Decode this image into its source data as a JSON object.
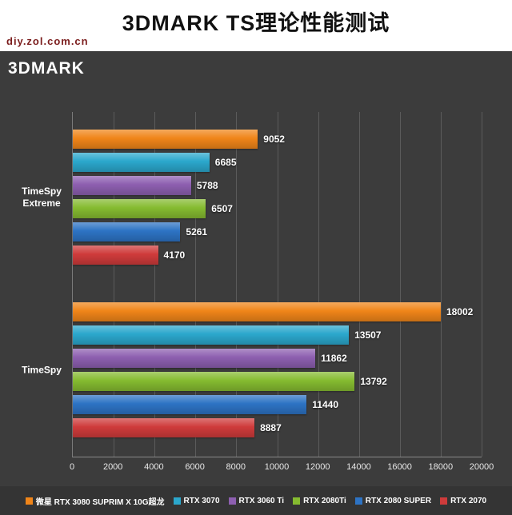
{
  "header": {
    "title": "3DMARK TS理论性能测试",
    "watermark": "diy.zol.com.cn"
  },
  "chart_data": {
    "type": "bar",
    "orientation": "horizontal",
    "title": "3DMARK",
    "background": "#3c3c3c",
    "grid": true,
    "legend_position": "bottom",
    "xlim": [
      0,
      20000
    ],
    "xticks": [
      0,
      2000,
      4000,
      6000,
      8000,
      10000,
      12000,
      14000,
      16000,
      18000,
      20000
    ],
    "categories": [
      "TimeSpy Extreme",
      "TimeSpy"
    ],
    "series": [
      {
        "name": "微星 RTX 3080 SUPRIM X 10G超龙",
        "color": "#f08519",
        "values": [
          9052,
          18002
        ]
      },
      {
        "name": "RTX 3070",
        "color": "#2ba7cc",
        "values": [
          6685,
          13507
        ]
      },
      {
        "name": "RTX 3060 Ti",
        "color": "#8d5fb0",
        "values": [
          5788,
          11862
        ]
      },
      {
        "name": "RTX 2080Ti",
        "color": "#85bb30",
        "values": [
          6507,
          13792
        ]
      },
      {
        "name": "RTX 2080 SUPER",
        "color": "#2d73c4",
        "values": [
          5261,
          11440
        ]
      },
      {
        "name": "RTX 2070",
        "color": "#cf3b3b",
        "values": [
          4170,
          8887
        ]
      }
    ]
  }
}
